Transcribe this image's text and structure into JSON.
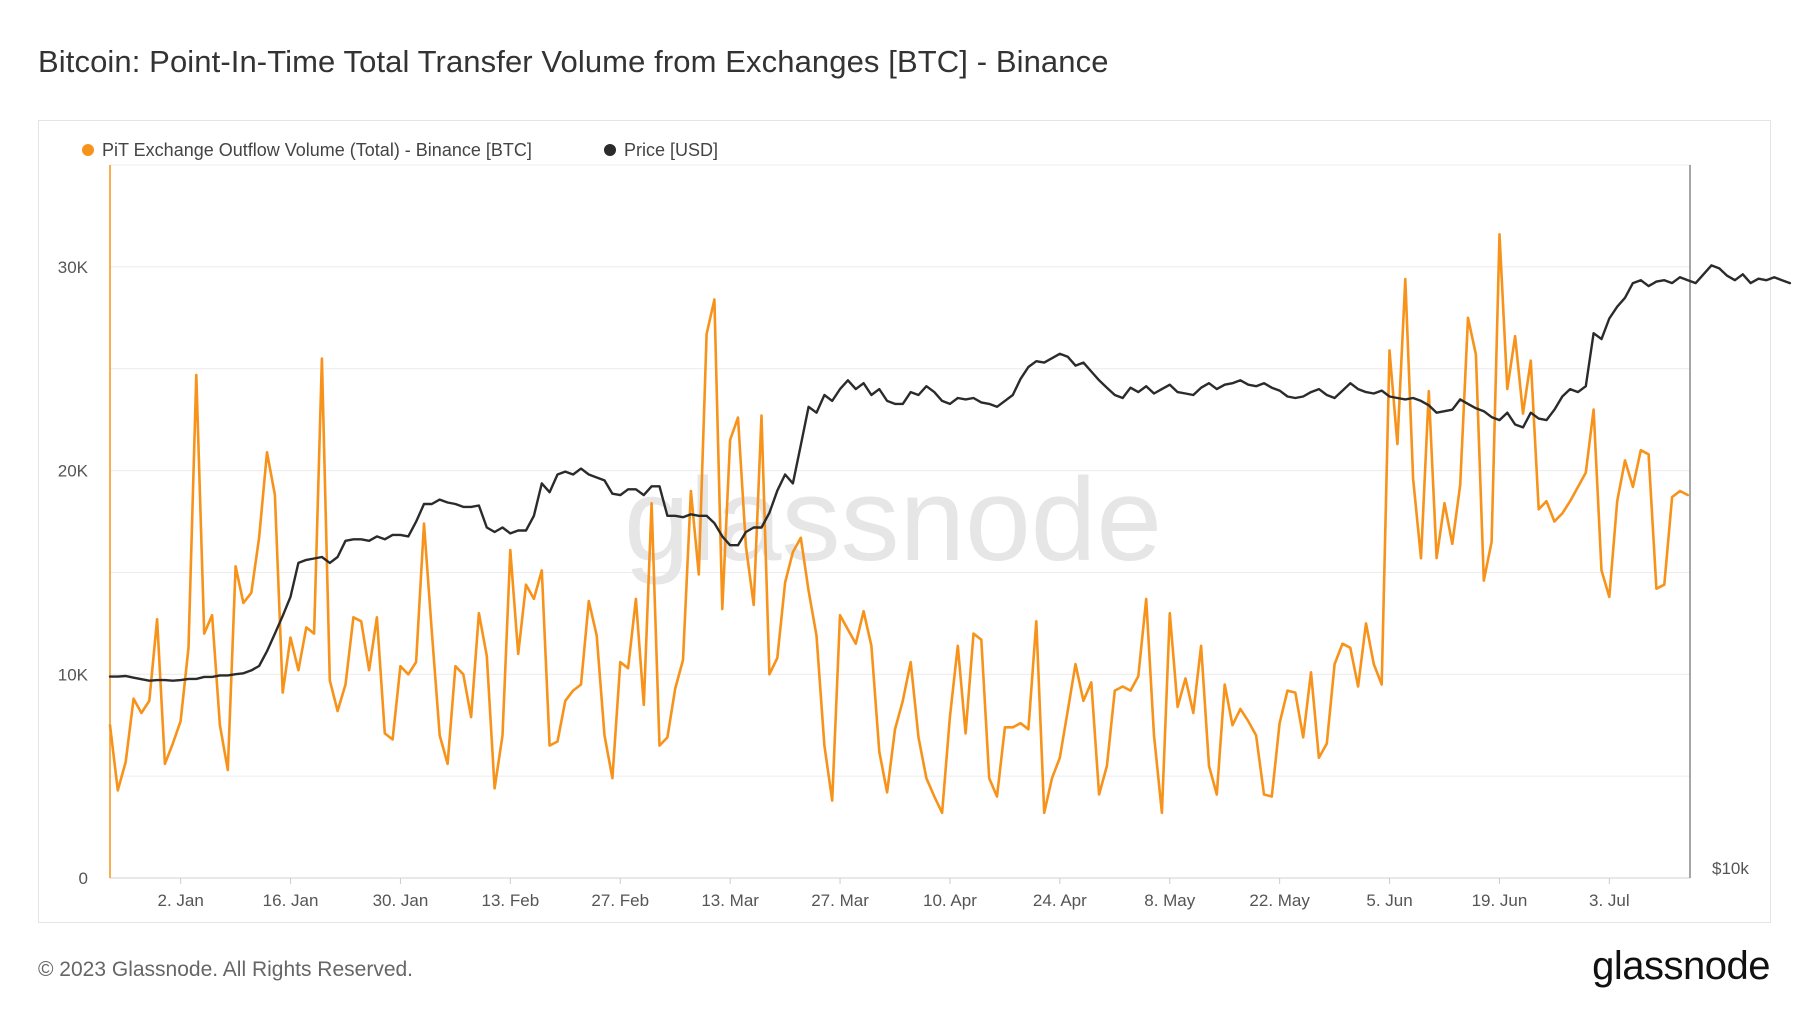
{
  "header": {
    "title": "Bitcoin: Point-In-Time Total Transfer Volume from Exchanges [BTC] - Binance"
  },
  "footer": {
    "copyright": "© 2023 Glassnode. All Rights Reserved.",
    "brand": "glassnode"
  },
  "watermark": "glassnode",
  "colors": {
    "outflow": "#f7931a",
    "price": "#2b2b2b",
    "grid": "#ececec"
  },
  "chart_data": {
    "type": "line",
    "title": "Bitcoin: Point-In-Time Total Transfer Volume from Exchanges [BTC] - Binance",
    "legend_position": "top-left",
    "grid": true,
    "x_ticks": [
      "2. Jan",
      "16. Jan",
      "30. Jan",
      "13. Feb",
      "27. Feb",
      "13. Mar",
      "27. Mar",
      "10. Apr",
      "24. Apr",
      "8. May",
      "22. May",
      "5. Jun",
      "19. Jun",
      "3. Jul"
    ],
    "y_ticks_left": [
      "0",
      "10K",
      "20K",
      "30K"
    ],
    "y_ticks_right": [
      "$10k"
    ],
    "x_range": [
      "2022-12-24",
      "2023-07-12"
    ],
    "y_left_range": [
      0,
      35000
    ],
    "series": [
      {
        "name": "PiT Exchange Outflow Volume (Total) - Binance [BTC]",
        "axis": "left",
        "color": "#f7931a",
        "start_date": "2022-12-24",
        "step_days": 1,
        "values": [
          7500,
          4300,
          5700,
          8800,
          8100,
          8700,
          12700,
          5600,
          6600,
          7700,
          11300,
          24700,
          12000,
          12900,
          7500,
          5300,
          15300,
          13500,
          14000,
          16700,
          20900,
          18800,
          9100,
          11800,
          10200,
          12300,
          12000,
          25500,
          9700,
          8200,
          9500,
          12800,
          12600,
          10200,
          12800,
          7100,
          6800,
          10400,
          10000,
          10600,
          17400,
          12100,
          7000,
          5600,
          10400,
          10000,
          7900,
          13000,
          10900,
          4400,
          7000,
          16100,
          11000,
          14400,
          13700,
          15100,
          6500,
          6700,
          8700,
          9200,
          9500,
          13600,
          11900,
          7000,
          4900,
          10600,
          10300,
          13700,
          8500,
          18400,
          6500,
          6900,
          9300,
          10700,
          19000,
          14900,
          26700,
          28400,
          13200,
          21500,
          22600,
          16300,
          13400,
          22700,
          10000,
          10800,
          14500,
          16000,
          16700,
          14100,
          11900,
          6500,
          3800,
          12900,
          12200,
          11500,
          13100,
          11400,
          6200,
          4200,
          7300,
          8700,
          10600,
          6900,
          4900,
          4000,
          3200,
          7900,
          11400,
          7100,
          12000,
          11700,
          4900,
          4000,
          7400,
          7400,
          7600,
          7300,
          12600,
          3200,
          4900,
          5900,
          8200,
          10500,
          8700,
          9600,
          4100,
          5500,
          9200,
          9400,
          9200,
          9900,
          13700,
          7000,
          3200,
          13000,
          8400,
          9800,
          8100,
          11400,
          5500,
          4100,
          9500,
          7500,
          8300,
          7700,
          7000,
          4100,
          4000,
          7600,
          9200,
          9100,
          6900,
          10100,
          5900,
          6600,
          10500,
          11500,
          11300,
          9400,
          12500,
          10500,
          9500,
          25900,
          21300,
          29400,
          19600,
          15700,
          23900,
          15700,
          18400,
          16400,
          19300,
          27500,
          25700,
          14600,
          16500,
          31600,
          24000,
          26600,
          22800,
          25400,
          18100,
          18500,
          17500,
          17900,
          18500,
          19200,
          19900,
          23000,
          15100,
          13800,
          18500,
          20500,
          19200,
          21000,
          20800,
          14200,
          14400,
          18700,
          19000,
          18800
        ]
      },
      {
        "name": "Price [USD]",
        "axis": "right",
        "color": "#2b2b2b",
        "start_date": "2022-12-24",
        "step_days": 1,
        "values": [
          16840,
          16840,
          16860,
          16800,
          16750,
          16700,
          16720,
          16720,
          16700,
          16720,
          16760,
          16760,
          16830,
          16830,
          16880,
          16880,
          16920,
          16950,
          17050,
          17200,
          17700,
          18300,
          18900,
          19550,
          20700,
          20800,
          20850,
          20900,
          20700,
          20900,
          21450,
          21500,
          21500,
          21450,
          21600,
          21500,
          21650,
          21650,
          21600,
          22100,
          22700,
          22700,
          22850,
          22750,
          22700,
          22600,
          22600,
          22650,
          21900,
          21750,
          21900,
          21700,
          21800,
          21800,
          22300,
          23400,
          23100,
          23700,
          23800,
          23700,
          23900,
          23700,
          23600,
          23500,
          23050,
          23000,
          23200,
          23200,
          23000,
          23300,
          23300,
          22300,
          22300,
          22250,
          22350,
          22300,
          22300,
          22050,
          21600,
          21300,
          21300,
          21750,
          21900,
          21900,
          22400,
          23150,
          23700,
          23400,
          24700,
          26000,
          25800,
          26400,
          26200,
          26600,
          26900,
          26600,
          26800,
          26400,
          26600,
          26200,
          26100,
          26100,
          26500,
          26400,
          26700,
          26500,
          26200,
          26100,
          26300,
          26250,
          26300,
          26150,
          26100,
          26000,
          26200,
          26400,
          26950,
          27350,
          27550,
          27500,
          27650,
          27800,
          27700,
          27400,
          27500,
          27200,
          26900,
          26650,
          26400,
          26300,
          26650,
          26500,
          26700,
          26450,
          26600,
          26750,
          26500,
          26450,
          26400,
          26650,
          26800,
          26600,
          26750,
          26800,
          26900,
          26750,
          26700,
          26800,
          26650,
          26550,
          26350,
          26300,
          26350,
          26500,
          26600,
          26400,
          26300,
          26550,
          26800,
          26600,
          26500,
          26450,
          26550,
          26350,
          26300,
          26250,
          26300,
          26200,
          26050,
          25800,
          25850,
          25900,
          26250,
          26100,
          25950,
          25850,
          25650,
          25550,
          25800,
          25400,
          25300,
          25800,
          25600,
          25550,
          25900,
          26350,
          26600,
          26500,
          26700,
          28500,
          28300,
          29000,
          29400,
          29700,
          30200,
          30300,
          30100,
          30250,
          30300,
          30200,
          30400,
          30300,
          30200,
          30500,
          30800,
          30700,
          30450,
          30300,
          30500,
          30200,
          30350,
          30300,
          30400,
          30300,
          30200
        ]
      }
    ]
  }
}
